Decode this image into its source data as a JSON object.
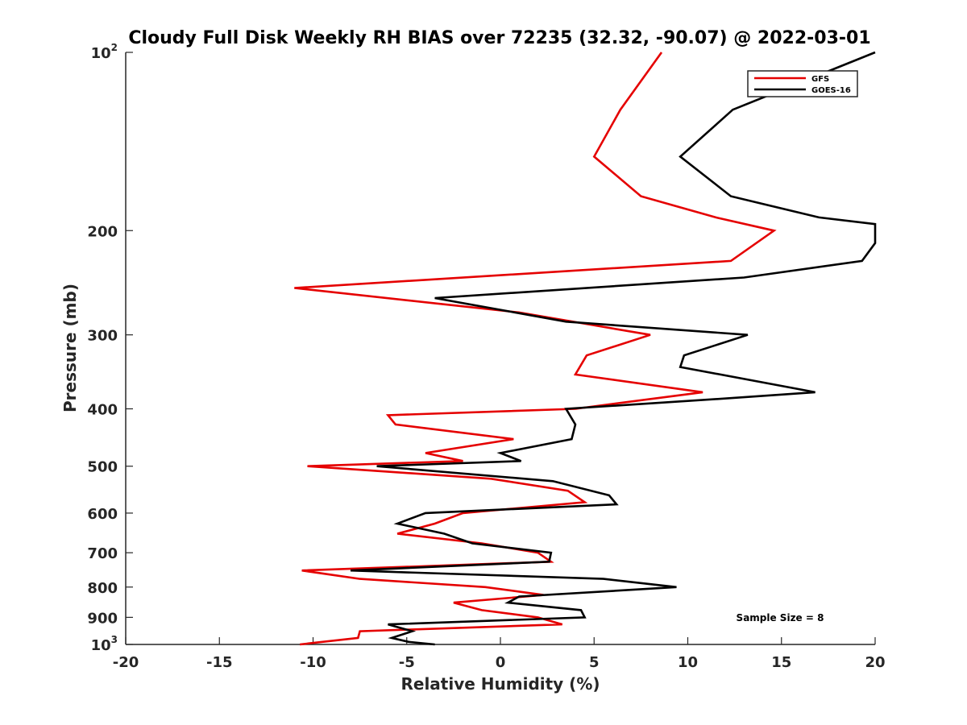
{
  "chart_data": {
    "type": "line",
    "title": "Cloudy Full Disk Weekly RH BIAS over 72235 (32.32, -90.07) @ 2022-03-01",
    "xlabel": "Relative Humidity (%)",
    "ylabel": "Pressure (mb)",
    "xlim": [
      -20,
      20
    ],
    "ylim": [
      100,
      1000
    ],
    "yscale": "log",
    "y_reversed": true,
    "grid": false,
    "legend_position": "top-right",
    "x_ticks": [
      "-20",
      "-15",
      "-10",
      "-5",
      "0",
      "5",
      "10",
      "15",
      "20"
    ],
    "y_ticks": [
      {
        "value": 100,
        "base": "10",
        "exp": "2"
      },
      {
        "value": 200,
        "base": "200",
        "exp": ""
      },
      {
        "value": 300,
        "base": "300",
        "exp": ""
      },
      {
        "value": 400,
        "base": "400",
        "exp": ""
      },
      {
        "value": 500,
        "base": "500",
        "exp": ""
      },
      {
        "value": 600,
        "base": "600",
        "exp": ""
      },
      {
        "value": 700,
        "base": "700",
        "exp": ""
      },
      {
        "value": 800,
        "base": "800",
        "exp": ""
      },
      {
        "value": 900,
        "base": "900",
        "exp": ""
      },
      {
        "value": 1000,
        "base": "10",
        "exp": "3"
      }
    ],
    "annotation": "Sample Size = 8",
    "series": [
      {
        "name": "GFS",
        "color": "#e50000",
        "points": [
          [
            8.6,
            100
          ],
          [
            6.4,
            125
          ],
          [
            5.0,
            150
          ],
          [
            7.5,
            175
          ],
          [
            11.5,
            190
          ],
          [
            14.6,
            200
          ],
          [
            12.3,
            225
          ],
          [
            -11.0,
            250
          ],
          [
            1.0,
            275
          ],
          [
            8.0,
            300
          ],
          [
            4.6,
            325
          ],
          [
            4.0,
            350
          ],
          [
            10.8,
            375
          ],
          [
            4.0,
            400
          ],
          [
            -6.0,
            410
          ],
          [
            -5.6,
            425
          ],
          [
            0.7,
            450
          ],
          [
            -4.0,
            475
          ],
          [
            -2.0,
            490
          ],
          [
            -10.3,
            500
          ],
          [
            -0.5,
            525
          ],
          [
            3.6,
            550
          ],
          [
            4.5,
            575
          ],
          [
            -2.0,
            600
          ],
          [
            -3.5,
            625
          ],
          [
            -5.5,
            650
          ],
          [
            -1.0,
            675
          ],
          [
            2.0,
            700
          ],
          [
            2.7,
            725
          ],
          [
            -10.6,
            750
          ],
          [
            -7.5,
            775
          ],
          [
            -0.8,
            800
          ],
          [
            2.3,
            825
          ],
          [
            -2.5,
            850
          ],
          [
            -1.0,
            875
          ],
          [
            2.0,
            900
          ],
          [
            3.3,
            925
          ],
          [
            -7.5,
            950
          ],
          [
            -7.6,
            975
          ],
          [
            -9.5,
            990
          ],
          [
            -10.7,
            1000
          ]
        ]
      },
      {
        "name": "GOES-16",
        "color": "#000000",
        "points": [
          [
            20.0,
            100
          ],
          [
            12.4,
            125
          ],
          [
            9.6,
            150
          ],
          [
            12.3,
            175
          ],
          [
            17.0,
            190
          ],
          [
            20.0,
            195
          ],
          [
            20.0,
            210
          ],
          [
            19.3,
            225
          ],
          [
            13.0,
            240
          ],
          [
            -3.5,
            260
          ],
          [
            3.5,
            285
          ],
          [
            13.2,
            300
          ],
          [
            9.8,
            325
          ],
          [
            9.6,
            340
          ],
          [
            16.8,
            375
          ],
          [
            11.6,
            385
          ],
          [
            3.5,
            400
          ],
          [
            4.0,
            425
          ],
          [
            3.8,
            450
          ],
          [
            0.0,
            475
          ],
          [
            1.1,
            490
          ],
          [
            -6.6,
            500
          ],
          [
            2.8,
            530
          ],
          [
            5.8,
            560
          ],
          [
            6.2,
            580
          ],
          [
            -4.0,
            600
          ],
          [
            -5.5,
            625
          ],
          [
            -3.0,
            650
          ],
          [
            -1.5,
            675
          ],
          [
            2.7,
            700
          ],
          [
            2.6,
            725
          ],
          [
            -8.0,
            750
          ],
          [
            5.5,
            775
          ],
          [
            9.4,
            800
          ],
          [
            1.0,
            830
          ],
          [
            0.4,
            850
          ],
          [
            4.3,
            875
          ],
          [
            4.5,
            900
          ],
          [
            -6.0,
            925
          ],
          [
            -4.7,
            950
          ],
          [
            -5.8,
            975
          ],
          [
            -4.9,
            990
          ],
          [
            -3.5,
            1000
          ]
        ]
      }
    ]
  }
}
